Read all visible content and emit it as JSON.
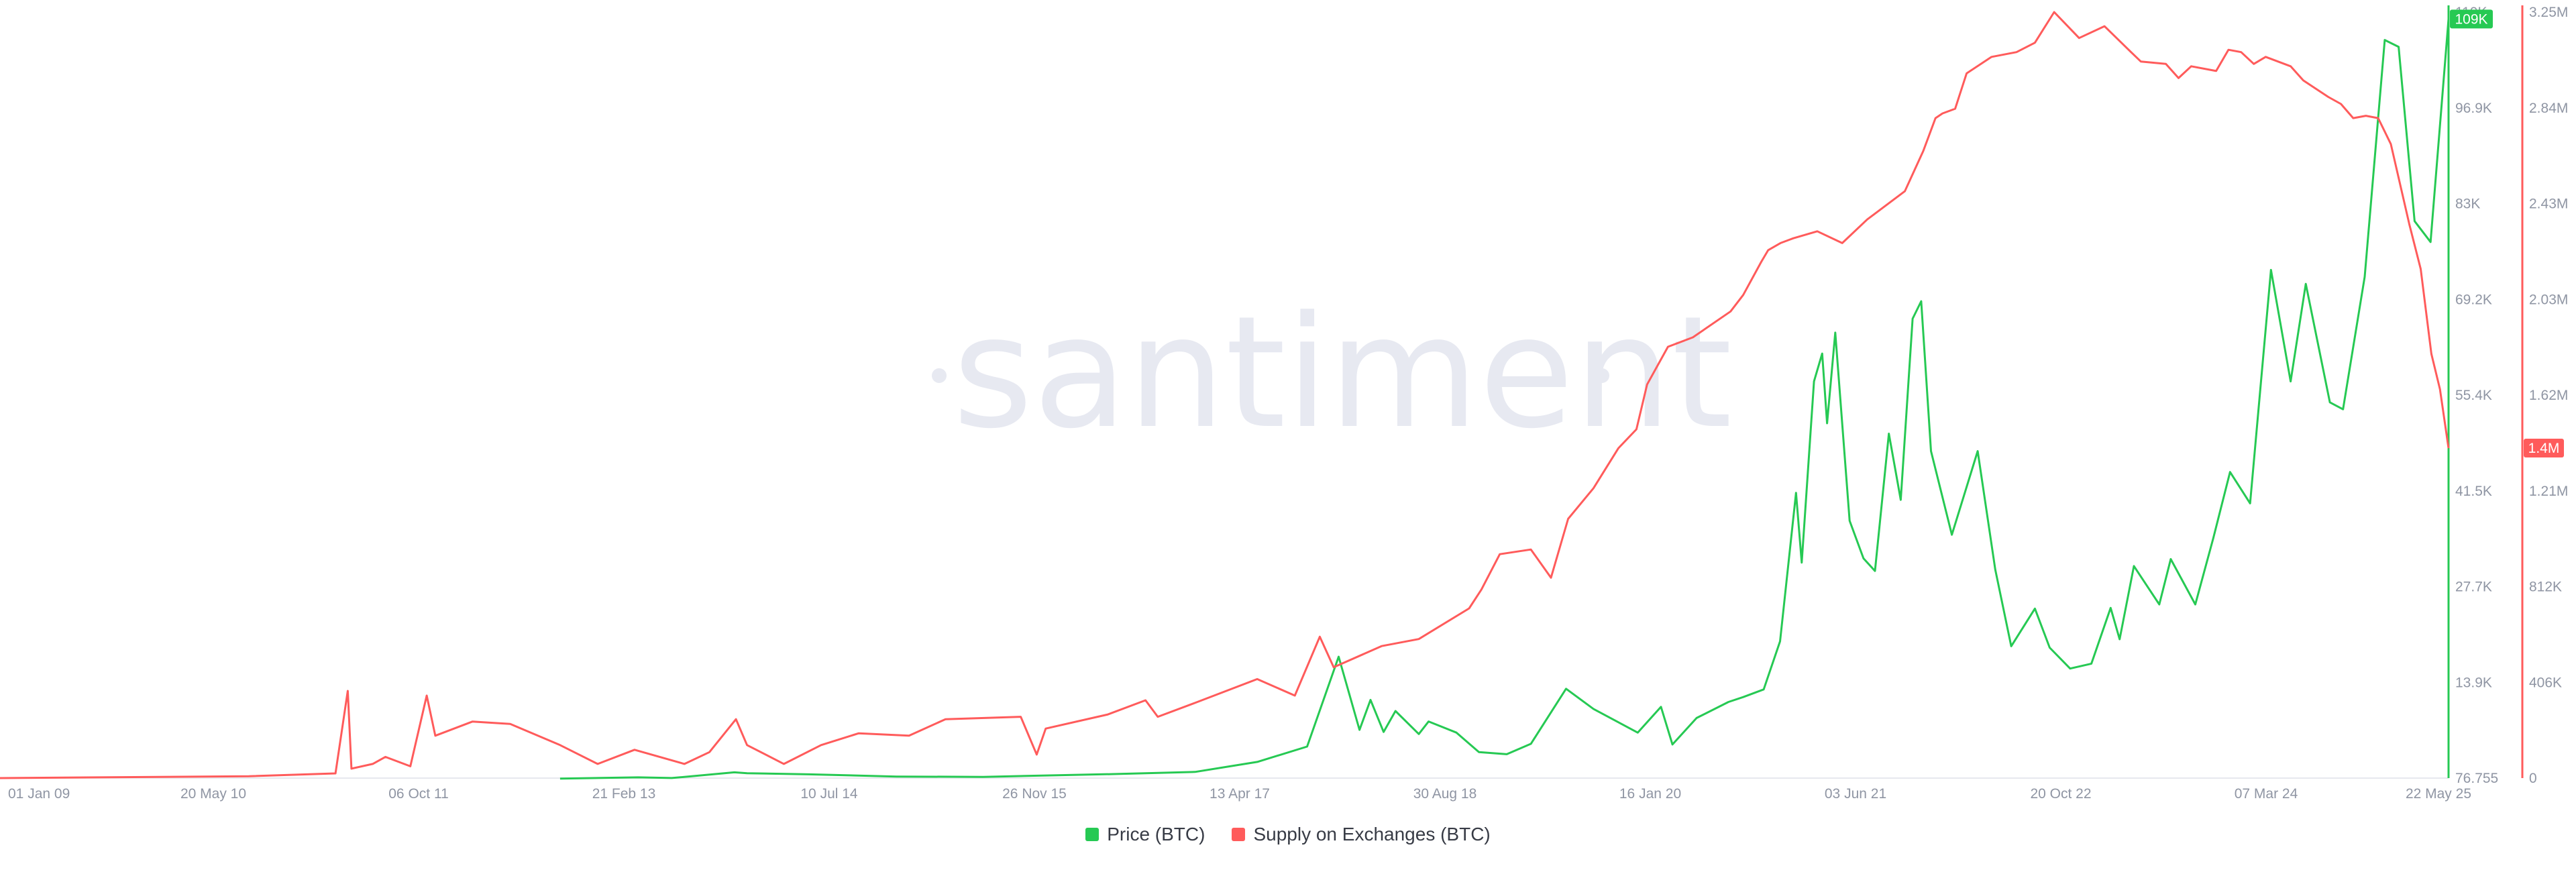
{
  "watermark": "santiment",
  "legend": [
    {
      "label": "Price (BTC)",
      "color": "#26c953"
    },
    {
      "label": "Supply on Exchanges (BTC)",
      "color": "#ff5b5b"
    }
  ],
  "chart_data": {
    "type": "line",
    "x_axis": {
      "range": [
        "2009-01-01",
        "2025-05-22"
      ],
      "ticks": [
        "01 Jan 09",
        "20 May 10",
        "06 Oct 11",
        "21 Feb 13",
        "10 Jul 14",
        "26 Nov 15",
        "13 Apr 17",
        "30 Aug 18",
        "16 Jan 20",
        "03 Jun 21",
        "20 Oct 22",
        "07 Mar 24",
        "22 May 25"
      ]
    },
    "y_axis_price": {
      "ticks": [
        "76.755",
        "13.9K",
        "27.7K",
        "41.5K",
        "55.4K",
        "69.2K",
        "83K",
        "96.9K",
        "110K"
      ],
      "range": [
        76.755,
        110000
      ],
      "color": "#26c953",
      "current_badge": "109K"
    },
    "y_axis_supply": {
      "ticks": [
        "0",
        "406K",
        "812K",
        "1.21M",
        "1.62M",
        "2.03M",
        "2.43M",
        "2.84M",
        "3.25M"
      ],
      "range": [
        0,
        3250000
      ],
      "color": "#ff5b5b",
      "current_badge": "1.4M"
    },
    "series": [
      {
        "name": "Price (BTC)",
        "axis": "price",
        "color": "#26c953",
        "points": [
          [
            "2012-10-01",
            12
          ],
          [
            "2013-04-10",
            180
          ],
          [
            "2013-07-01",
            90
          ],
          [
            "2013-12-01",
            900
          ],
          [
            "2014-01-01",
            780
          ],
          [
            "2014-06-01",
            620
          ],
          [
            "2015-01-01",
            300
          ],
          [
            "2015-08-01",
            250
          ],
          [
            "2016-06-15",
            650
          ],
          [
            "2016-12-31",
            960
          ],
          [
            "2017-06-01",
            2400
          ],
          [
            "2017-10-01",
            4600
          ],
          [
            "2017-12-17",
            17500
          ],
          [
            "2018-02-06",
            7000
          ],
          [
            "2018-03-05",
            11300
          ],
          [
            "2018-04-06",
            6700
          ],
          [
            "2018-05-05",
            9700
          ],
          [
            "2018-07-01",
            6400
          ],
          [
            "2018-07-25",
            8200
          ],
          [
            "2018-10-01",
            6600
          ],
          [
            "2018-11-25",
            3800
          ],
          [
            "2019-02-01",
            3500
          ],
          [
            "2019-04-01",
            5000
          ],
          [
            "2019-06-26",
            12900
          ],
          [
            "2019-09-01",
            10000
          ],
          [
            "2019-12-18",
            6600
          ],
          [
            "2020-02-13",
            10300
          ],
          [
            "2020-03-12",
            4900
          ],
          [
            "2020-05-10",
            8700
          ],
          [
            "2020-07-27",
            11000
          ],
          [
            "2020-09-01",
            11700
          ],
          [
            "2020-10-21",
            12800
          ],
          [
            "2020-11-30",
            19700
          ],
          [
            "2021-01-08",
            41000
          ],
          [
            "2021-01-22",
            31000
          ],
          [
            "2021-02-21",
            57000
          ],
          [
            "2021-03-13",
            61000
          ],
          [
            "2021-03-25",
            51000
          ],
          [
            "2021-04-14",
            64000
          ],
          [
            "2021-05-19",
            37000
          ],
          [
            "2021-06-22",
            31600
          ],
          [
            "2021-07-20",
            29800
          ],
          [
            "2021-08-23",
            49500
          ],
          [
            "2021-09-21",
            40000
          ],
          [
            "2021-10-20",
            66000
          ],
          [
            "2021-11-10",
            68500
          ],
          [
            "2021-12-04",
            47000
          ],
          [
            "2022-01-24",
            35000
          ],
          [
            "2022-03-28",
            47000
          ],
          [
            "2022-05-10",
            30000
          ],
          [
            "2022-06-18",
            19000
          ],
          [
            "2022-08-15",
            24400
          ],
          [
            "2022-09-20",
            18800
          ],
          [
            "2022-11-09",
            15800
          ],
          [
            "2022-12-31",
            16500
          ],
          [
            "2023-02-16",
            24500
          ],
          [
            "2023-03-10",
            20000
          ],
          [
            "2023-04-14",
            30500
          ],
          [
            "2023-06-15",
            25000
          ],
          [
            "2023-07-13",
            31500
          ],
          [
            "2023-09-11",
            25000
          ],
          [
            "2023-10-25",
            34500
          ],
          [
            "2023-12-05",
            44000
          ],
          [
            "2024-01-23",
            39500
          ],
          [
            "2024-03-14",
            73000
          ],
          [
            "2024-05-01",
            57000
          ],
          [
            "2024-06-07",
            71000
          ],
          [
            "2024-08-05",
            54000
          ],
          [
            "2024-09-06",
            53000
          ],
          [
            "2024-10-29",
            72000
          ],
          [
            "2024-12-17",
            106000
          ],
          [
            "2025-01-20",
            105000
          ],
          [
            "2025-02-28",
            80000
          ],
          [
            "2025-04-08",
            77000
          ],
          [
            "2025-05-22",
            109000
          ]
        ]
      },
      {
        "name": "Supply on Exchanges (BTC)",
        "axis": "supply",
        "color": "#ff5b5b",
        "points": [
          [
            "2009-01-01",
            0
          ],
          [
            "2010-09-01",
            8000
          ],
          [
            "2011-04-01",
            20000
          ],
          [
            "2011-05-01",
            370000
          ],
          [
            "2011-05-10",
            40000
          ],
          [
            "2011-07-01",
            60000
          ],
          [
            "2011-08-01",
            90000
          ],
          [
            "2011-10-01",
            50000
          ],
          [
            "2011-11-10",
            350000
          ],
          [
            "2011-12-01",
            180000
          ],
          [
            "2012-03-01",
            240000
          ],
          [
            "2012-06-01",
            230000
          ],
          [
            "2012-10-01",
            140000
          ],
          [
            "2013-01-01",
            60000
          ],
          [
            "2013-04-01",
            120000
          ],
          [
            "2013-08-01",
            60000
          ],
          [
            "2013-10-01",
            110000
          ],
          [
            "2013-12-05",
            250000
          ],
          [
            "2014-01-01",
            140000
          ],
          [
            "2014-04-01",
            60000
          ],
          [
            "2014-07-01",
            140000
          ],
          [
            "2014-10-01",
            190000
          ],
          [
            "2015-02-01",
            180000
          ],
          [
            "2015-05-01",
            250000
          ],
          [
            "2015-11-01",
            260000
          ],
          [
            "2015-12-10",
            100000
          ],
          [
            "2016-01-01",
            210000
          ],
          [
            "2016-06-01",
            270000
          ],
          [
            "2016-09-01",
            330000
          ],
          [
            "2016-10-01",
            260000
          ],
          [
            "2017-01-01",
            320000
          ],
          [
            "2017-06-01",
            420000
          ],
          [
            "2017-09-01",
            350000
          ],
          [
            "2017-11-01",
            600000
          ],
          [
            "2017-12-05",
            470000
          ],
          [
            "2018-04-01",
            560000
          ],
          [
            "2018-07-01",
            590000
          ],
          [
            "2018-11-01",
            720000
          ],
          [
            "2018-12-01",
            800000
          ],
          [
            "2019-01-15",
            950000
          ],
          [
            "2019-04-01",
            970000
          ],
          [
            "2019-05-20",
            850000
          ],
          [
            "2019-07-01",
            1100000
          ],
          [
            "2019-09-01",
            1230000
          ],
          [
            "2019-11-01",
            1400000
          ],
          [
            "2019-12-15",
            1480000
          ],
          [
            "2020-01-10",
            1670000
          ],
          [
            "2020-03-01",
            1830000
          ],
          [
            "2020-05-01",
            1870000
          ],
          [
            "2020-08-01",
            1980000
          ],
          [
            "2020-09-01",
            2050000
          ],
          [
            "2020-10-15",
            2190000
          ],
          [
            "2020-11-01",
            2240000
          ],
          [
            "2020-12-01",
            2270000
          ],
          [
            "2021-01-01",
            2290000
          ],
          [
            "2021-03-01",
            2320000
          ],
          [
            "2021-05-01",
            2270000
          ],
          [
            "2021-07-01",
            2370000
          ],
          [
            "2021-10-01",
            2490000
          ],
          [
            "2021-11-15",
            2660000
          ],
          [
            "2021-12-15",
            2800000
          ],
          [
            "2022-01-01",
            2820000
          ],
          [
            "2022-02-01",
            2840000
          ],
          [
            "2022-03-01",
            2990000
          ],
          [
            "2022-05-01",
            3060000
          ],
          [
            "2022-07-01",
            3080000
          ],
          [
            "2022-08-15",
            3120000
          ],
          [
            "2022-10-01",
            3250000
          ],
          [
            "2022-12-01",
            3140000
          ],
          [
            "2023-02-01",
            3190000
          ],
          [
            "2023-04-01",
            3090000
          ],
          [
            "2023-05-01",
            3040000
          ],
          [
            "2023-07-01",
            3030000
          ],
          [
            "2023-08-01",
            2970000
          ],
          [
            "2023-09-01",
            3020000
          ],
          [
            "2023-11-01",
            3000000
          ],
          [
            "2023-12-01",
            3090000
          ],
          [
            "2024-01-01",
            3080000
          ],
          [
            "2024-02-01",
            3030000
          ],
          [
            "2024-03-01",
            3060000
          ],
          [
            "2024-05-01",
            3020000
          ],
          [
            "2024-06-01",
            2960000
          ],
          [
            "2024-08-01",
            2890000
          ],
          [
            "2024-09-01",
            2860000
          ],
          [
            "2024-10-01",
            2800000
          ],
          [
            "2024-11-01",
            2810000
          ],
          [
            "2024-12-01",
            2800000
          ],
          [
            "2025-01-01",
            2690000
          ],
          [
            "2025-02-15",
            2350000
          ],
          [
            "2025-03-15",
            2160000
          ],
          [
            "2025-04-10",
            1800000
          ],
          [
            "2025-05-01",
            1650000
          ],
          [
            "2025-05-22",
            1400000
          ]
        ]
      }
    ],
    "grid": false,
    "legend_position": "bottom-center"
  }
}
